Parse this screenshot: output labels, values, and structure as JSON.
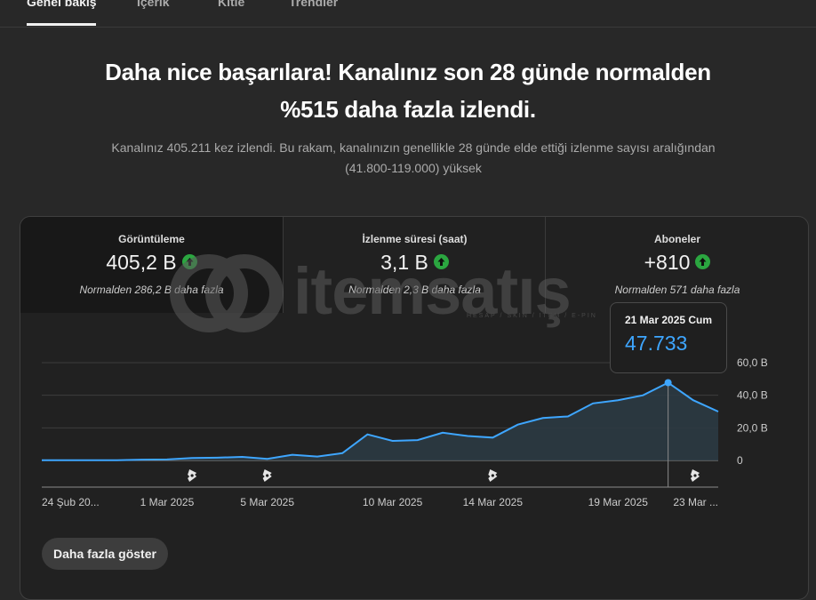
{
  "tabs": [
    {
      "label": "Genel bakış",
      "active": true
    },
    {
      "label": "İçerik",
      "active": false
    },
    {
      "label": "Kitle",
      "active": false
    },
    {
      "label": "Trendler",
      "active": false
    }
  ],
  "headline": {
    "line1": "Daha nice başarılara! Kanalınız son 28 günde normalden",
    "line2": "%515 daha fazla izlendi."
  },
  "subtext": {
    "line1": "Kanalınız 405.211 kez izlendi. Bu rakam, kanalınızın genellikle 28 günde elde ettiği izlenme sayısı aralığından",
    "line2": "(41.800-119.000) yüksek"
  },
  "metrics": [
    {
      "label": "Görüntüleme",
      "value": "405,2 B",
      "note": "Normalden 286,2 B daha fazla",
      "trend_icon": "arrow-up-icon"
    },
    {
      "label": "İzlenme süresi (saat)",
      "value": "3,1 B",
      "note": "Normalden 2,3 B daha fazla",
      "trend_icon": "arrow-up-icon"
    },
    {
      "label": "Aboneler",
      "value": "+810",
      "note": "Normalden 571 daha fazla",
      "trend_icon": "arrow-up-icon"
    }
  ],
  "watermark": {
    "text": "itemsatış",
    "sub": "HESAP / SKIN / ITEM / E-PIN"
  },
  "tooltip": {
    "date": "21 Mar 2025 Cum",
    "value": "47.733"
  },
  "more_button": "Daha fazla göster",
  "colors": {
    "line": "#3ea6ff",
    "up_badge": "#2ba640",
    "background": "#282828"
  },
  "chart_data": {
    "type": "area",
    "x": [
      "24 Şub",
      "25 Şub",
      "26 Şub",
      "27 Şub",
      "28 Şub",
      "1 Mar",
      "2 Mar",
      "3 Mar",
      "4 Mar",
      "5 Mar",
      "6 Mar",
      "7 Mar",
      "8 Mar",
      "9 Mar",
      "10 Mar",
      "11 Mar",
      "12 Mar",
      "13 Mar",
      "14 Mar",
      "15 Mar",
      "16 Mar",
      "17 Mar",
      "18 Mar",
      "19 Mar",
      "20 Mar",
      "21 Mar",
      "22 Mar",
      "23 Mar"
    ],
    "series": [
      {
        "values": [
          0.1,
          0.1,
          0.1,
          0.1,
          0.5,
          0.6,
          1.5,
          1.7,
          2.2,
          1.0,
          3.5,
          2.4,
          4.5,
          16.0,
          12.0,
          12.5,
          17.0,
          15.0,
          14.0,
          22.0,
          26.0,
          27.0,
          35.0,
          37.0,
          40.0,
          47.733,
          37.0,
          30.0
        ]
      }
    ],
    "tick_labels": [
      "24 Şub 20...",
      "1 Mar 2025",
      "5 Mar 2025",
      "10 Mar 2025",
      "14 Mar 2025",
      "19 Mar 2025",
      "23 Mar ..."
    ],
    "tick_indices": [
      0,
      5,
      9,
      14,
      18,
      23,
      27
    ],
    "y_ticks": [
      "0",
      "20,0 B",
      "40,0 B",
      "60,0 B"
    ],
    "ylim": [
      0,
      60
    ],
    "grid": true,
    "highlight_index": 25,
    "shorts_marker_indices": [
      6,
      9,
      18,
      27
    ]
  }
}
